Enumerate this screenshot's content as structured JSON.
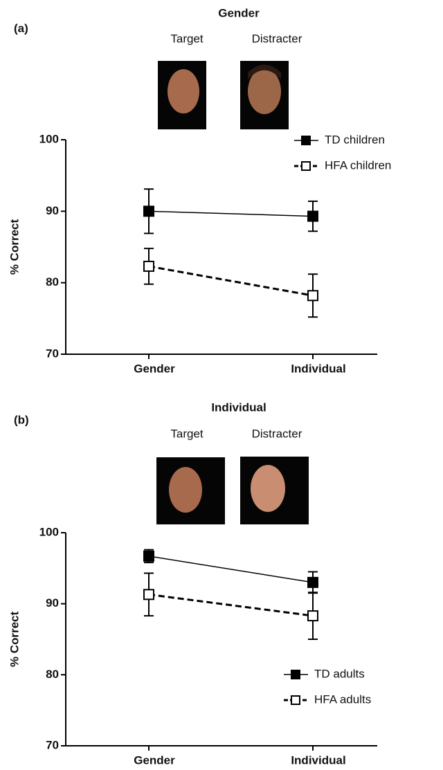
{
  "chart_data": [
    {
      "type": "line",
      "panel_label": "(a)",
      "title": "Gender",
      "image_labels": [
        "Target",
        "Distracter"
      ],
      "ylabel": "% Correct",
      "categories": [
        "Gender",
        "Individual"
      ],
      "ylim": [
        70,
        100
      ],
      "yticks": [
        70,
        80,
        90,
        100
      ],
      "legend": "upper right",
      "series": [
        {
          "name": "TD children",
          "color": "#000000",
          "marker": "filled",
          "linestyle": "solid",
          "values": [
            90,
            89.3
          ],
          "errors": [
            3.1,
            2.1
          ]
        },
        {
          "name": "HFA children",
          "color": "#000000",
          "marker": "open",
          "linestyle": "dashed",
          "values": [
            82.3,
            78.2
          ],
          "errors": [
            2.5,
            3.0
          ]
        }
      ]
    },
    {
      "type": "line",
      "panel_label": "(b)",
      "title": "Individual",
      "image_labels": [
        "Target",
        "Distracter"
      ],
      "ylabel": "% Correct",
      "categories": [
        "Gender",
        "Individual"
      ],
      "ylim": [
        70,
        100
      ],
      "yticks": [
        70,
        80,
        90,
        100
      ],
      "legend": "lower right",
      "series": [
        {
          "name": "TD adults",
          "color": "#000000",
          "marker": "filled",
          "linestyle": "solid",
          "values": [
            96.7,
            93
          ],
          "errors": [
            0.9,
            1.5
          ]
        },
        {
          "name": "HFA adults",
          "color": "#000000",
          "marker": "open",
          "linestyle": "dashed",
          "values": [
            91.3,
            88.3
          ],
          "errors": [
            3.0,
            3.3
          ]
        }
      ]
    }
  ]
}
